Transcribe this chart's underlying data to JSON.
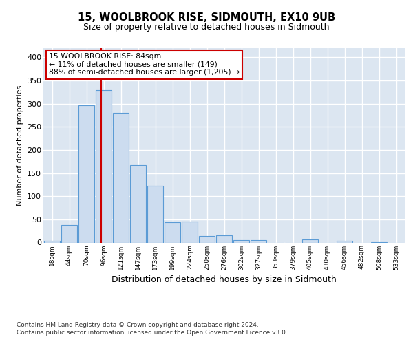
{
  "title1": "15, WOOLBROOK RISE, SIDMOUTH, EX10 9UB",
  "title2": "Size of property relative to detached houses in Sidmouth",
  "xlabel": "Distribution of detached houses by size in Sidmouth",
  "ylabel": "Number of detached properties",
  "footnote": "Contains HM Land Registry data © Crown copyright and database right 2024.\nContains public sector information licensed under the Open Government Licence v3.0.",
  "bar_labels": [
    "18sqm",
    "44sqm",
    "70sqm",
    "96sqm",
    "121sqm",
    "147sqm",
    "173sqm",
    "199sqm",
    "224sqm",
    "250sqm",
    "276sqm",
    "302sqm",
    "327sqm",
    "353sqm",
    "379sqm",
    "405sqm",
    "430sqm",
    "456sqm",
    "482sqm",
    "508sqm",
    "533sqm"
  ],
  "bar_values": [
    3,
    38,
    297,
    330,
    280,
    168,
    122,
    44,
    46,
    14,
    16,
    5,
    5,
    0,
    0,
    6,
    0,
    3,
    0,
    1,
    0
  ],
  "bar_color": "#ccdcef",
  "bar_edge_color": "#5b9bd5",
  "annotation_box_text": "15 WOOLBROOK RISE: 84sqm\n← 11% of detached houses are smaller (149)\n88% of semi-detached houses are larger (1,205) →",
  "redline_x": 2.87,
  "ylim": [
    0,
    420
  ],
  "yticks": [
    0,
    50,
    100,
    150,
    200,
    250,
    300,
    350,
    400
  ],
  "fig_bg_color": "#ffffff",
  "plot_bg_color": "#dce6f1",
  "grid_color": "#ffffff",
  "annotation_box_color": "#ffffff",
  "annotation_box_edge_color": "#cc0000",
  "redline_color": "#cc0000"
}
